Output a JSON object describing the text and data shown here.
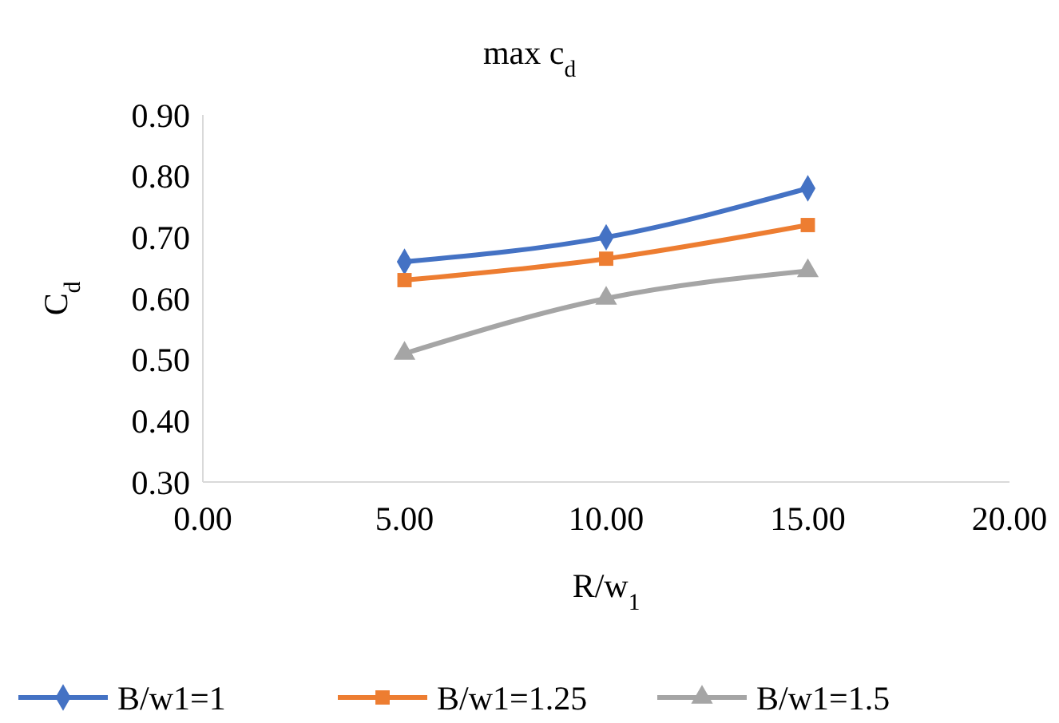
{
  "chart_data": {
    "type": "line",
    "title": "max c$_{d}$",
    "xlabel": "R/w$_{1}$",
    "ylabel": "C$_{d}$",
    "x": [
      5,
      10,
      15
    ],
    "series": [
      {
        "name": "B/w1=1",
        "color": "#4472c4",
        "values": [
          0.66,
          0.7,
          0.78
        ],
        "marker": "diamond"
      },
      {
        "name": "B/w1=1.25",
        "color": "#ed7d31",
        "values": [
          0.63,
          0.665,
          0.72
        ],
        "marker": "square"
      },
      {
        "name": "B/w1=1.5",
        "color": "#a5a5a5",
        "values": [
          0.51,
          0.6,
          0.645
        ],
        "marker": "triangle"
      }
    ],
    "xlim": [
      0,
      20
    ],
    "xticks": [
      {
        "value": 0,
        "label": "0.00"
      },
      {
        "value": 5,
        "label": "5.00"
      },
      {
        "value": 10,
        "label": "10.00"
      },
      {
        "value": 15,
        "label": "15.00"
      },
      {
        "value": 20,
        "label": "20.00"
      }
    ],
    "ylim": [
      0.3,
      0.9
    ],
    "yticks": [
      {
        "value": 0.3,
        "label": "0.30"
      },
      {
        "value": 0.4,
        "label": "0.40"
      },
      {
        "value": 0.5,
        "label": "0.50"
      },
      {
        "value": 0.6,
        "label": "0.60"
      },
      {
        "value": 0.7,
        "label": "0.70"
      },
      {
        "value": 0.8,
        "label": "0.80"
      },
      {
        "value": 0.9,
        "label": "0.90"
      }
    ],
    "grid": false,
    "legend": "bottom",
    "line_style": "solid"
  }
}
